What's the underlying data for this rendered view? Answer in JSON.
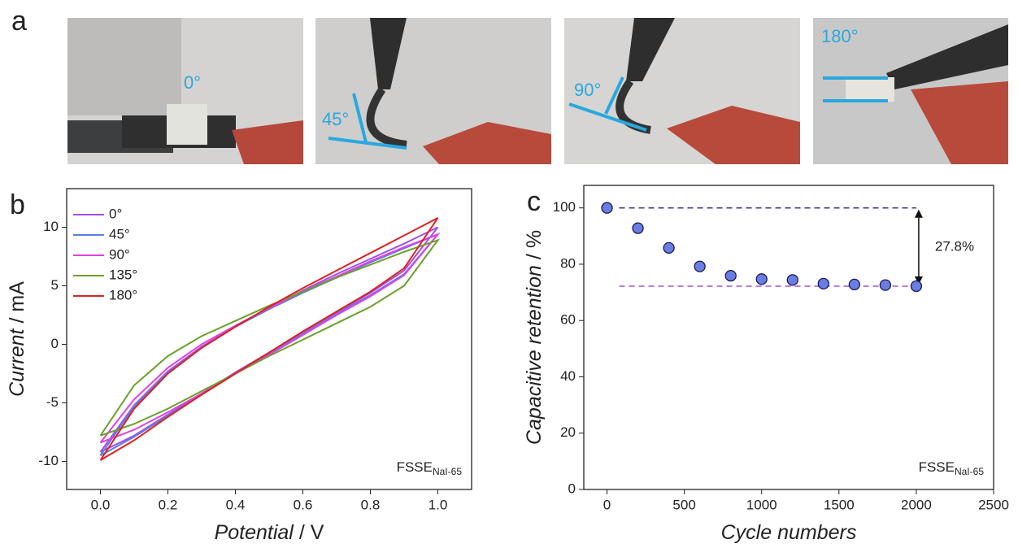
{
  "panel_a": {
    "label": "a",
    "angles": [
      "0°",
      "45°",
      "90°",
      "180°"
    ]
  },
  "chart_data": [
    {
      "type": "line",
      "panel_label": "b",
      "x_label_italic": "Potential",
      "x_label_unit": "/ V",
      "y_label_italic": "Current",
      "y_label_unit": "/ mA",
      "annotation": {
        "text": "FSSE",
        "subscript": "NaI-65"
      },
      "x": [
        0,
        0.1,
        0.2,
        0.3,
        0.4,
        0.5,
        0.6,
        0.7,
        0.8,
        0.9,
        1.0,
        0.9,
        0.8,
        0.7,
        0.6,
        0.5,
        0.4,
        0.3,
        0.2,
        0.1,
        0
      ],
      "series": [
        {
          "name": "0°",
          "color": "#a64ce8",
          "values": [
            -9.2,
            -5.2,
            -2.3,
            -0.2,
            1.5,
            3.1,
            4.6,
            6.0,
            7.3,
            8.6,
            10.0,
            6.3,
            4.4,
            2.7,
            1.0,
            -0.7,
            -2.4,
            -4.2,
            -6.0,
            -7.8,
            -9.2
          ]
        },
        {
          "name": "45°",
          "color": "#5a7fe0",
          "values": [
            -9.5,
            -5.3,
            -2.4,
            -0.3,
            1.5,
            3.0,
            4.4,
            5.7,
            7.0,
            8.2,
            9.4,
            6.0,
            4.2,
            2.6,
            0.9,
            -0.8,
            -2.5,
            -4.3,
            -6.1,
            -7.9,
            -9.5
          ]
        },
        {
          "name": "90°",
          "color": "#e040e8",
          "values": [
            -8.4,
            -4.7,
            -2.0,
            0.0,
            1.6,
            3.1,
            4.5,
            5.8,
            7.1,
            8.3,
            9.4,
            5.9,
            4.1,
            2.5,
            0.8,
            -0.9,
            -2.5,
            -4.2,
            -5.8,
            -7.3,
            -8.4
          ]
        },
        {
          "name": "135°",
          "color": "#6aa12a",
          "values": [
            -7.8,
            -3.5,
            -1.0,
            0.7,
            2.0,
            3.3,
            4.5,
            5.7,
            6.8,
            7.9,
            8.9,
            5.0,
            3.2,
            1.8,
            0.4,
            -1.0,
            -2.5,
            -4.0,
            -5.5,
            -6.8,
            -7.8
          ]
        },
        {
          "name": "180°",
          "color": "#e02020",
          "values": [
            -9.9,
            -5.5,
            -2.5,
            -0.3,
            1.5,
            3.2,
            4.8,
            6.3,
            7.8,
            9.3,
            10.8,
            6.5,
            4.5,
            2.8,
            1.1,
            -0.7,
            -2.5,
            -4.3,
            -6.2,
            -8.2,
            -9.9
          ]
        }
      ],
      "xlim": [
        -0.1,
        1.1
      ],
      "ylim": [
        -12.4,
        13.3
      ],
      "xticks": [
        {
          "value": 0,
          "label": "0.0"
        },
        0.2,
        0.4,
        0.6,
        0.8,
        {
          "value": 1,
          "label": "1.0"
        }
      ],
      "yticks": [
        -10,
        -5,
        0,
        5,
        10
      ],
      "legend": "upper-left"
    },
    {
      "type": "scatter",
      "panel_label": "c",
      "x_label_italic": "Cycle numbers",
      "y_label_italic": "Capacitive retention",
      "y_label_unit": "/ %",
      "annotation": {
        "text": "FSSE",
        "subscript": "NaI-65"
      },
      "x": [
        0,
        200,
        400,
        600,
        800,
        1000,
        1200,
        1400,
        1600,
        1800,
        2000
      ],
      "values": [
        100,
        92.8,
        85.8,
        79.2,
        75.9,
        74.7,
        74.4,
        73.1,
        72.8,
        72.6,
        72.2
      ],
      "color": "#6b7de0",
      "reference_lines": [
        100,
        72.2
      ],
      "reference_colors": [
        "#4b2e8c",
        "#a055d8"
      ],
      "arrow_label": "27.8%",
      "xlim": [
        -150,
        2500
      ],
      "ylim": [
        0,
        108
      ],
      "xticks": [
        0,
        500,
        1000,
        1500,
        2000,
        2500
      ],
      "yticks": [
        0,
        20,
        40,
        60,
        80,
        100
      ]
    }
  ]
}
